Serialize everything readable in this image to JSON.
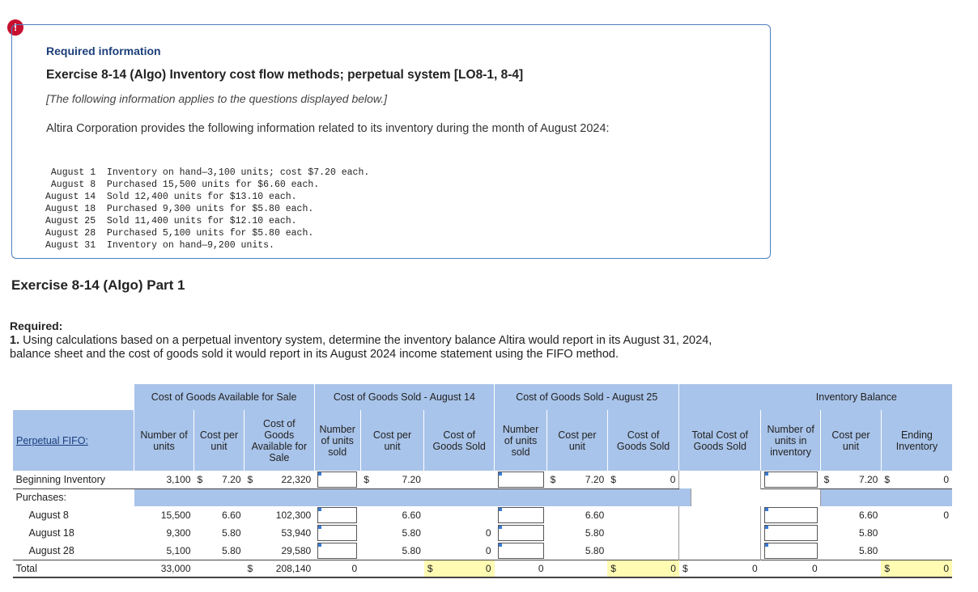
{
  "alert": "!",
  "info": {
    "required_info": "Required information",
    "exercise_title": "Exercise 8-14 (Algo) Inventory cost flow methods; perpetual system [LO8-1, 8-4]",
    "note": "[The following information applies to the questions displayed below.]",
    "intro": "Altira Corporation provides the following information related to its inventory during the month of August 2024:",
    "transactions": [
      " August 1  Inventory on hand—3,100 units; cost $7.20 each.",
      " August 8  Purchased 15,500 units for $6.60 each.",
      "August 14  Sold 12,400 units for $13.10 each.",
      "August 18  Purchased 9,300 units for $5.80 each.",
      "August 25  Sold 11,400 units for $12.10 each.",
      "August 28  Purchased 5,100 units for $5.80 each.",
      "August 31  Inventory on hand—9,200 units."
    ]
  },
  "part_title": "Exercise 8-14 (Algo) Part 1",
  "required": {
    "label": "Required:",
    "number": "1.",
    "text": " Using calculations based on a perpetual inventory system, determine the inventory balance Altira would report in its August 31, 2024, balance sheet and the cost of goods sold it would report in its August 2024 income statement using the FIFO method."
  },
  "table": {
    "group_headers": {
      "available": "Cost of Goods Available for Sale",
      "sold14": "Cost of Goods Sold - August 14",
      "sold25": "Cost of Goods Sold - August 25",
      "balance": "Inventory Balance"
    },
    "perpetual_label": "Perpetual FIFO:",
    "col": {
      "num_units": "Number of units",
      "cost_per_unit": "Cost per unit",
      "cost_available": "Cost of Goods Available for Sale",
      "num_units_sold": "Number of units sold",
      "cost_goods_sold": "Cost of Goods Sold",
      "total_cogs": "Total Cost of Goods Sold",
      "num_in_inventory": "Number of units in inventory",
      "ending_inventory": "Ending Inventory"
    },
    "dollar": "$",
    "rows": {
      "beginning": {
        "label": "Beginning Inventory",
        "units": "3,100",
        "cost": "7.20",
        "total": "22,320",
        "c14": "7.20",
        "c25": "7.20",
        "cogs25": "0",
        "bal_cost": "7.20",
        "bal_end": "0"
      },
      "purchases_label": "Purchases:",
      "aug8": {
        "label": "August 8",
        "units": "15,500",
        "cost": "6.60",
        "total": "102,300",
        "c14": "6.60",
        "c25": "6.60",
        "bal_cost": "6.60",
        "bal_end": "0"
      },
      "aug18": {
        "label": "August 18",
        "units": "9,300",
        "cost": "5.80",
        "total": "53,940",
        "c14": "5.80",
        "cogs14": "0",
        "c25": "5.80",
        "bal_cost": "5.80"
      },
      "aug28": {
        "label": "August 28",
        "units": "5,100",
        "cost": "5.80",
        "total": "29,580",
        "c14": "5.80",
        "cogs14": "0",
        "c25": "5.80",
        "bal_cost": "5.80"
      },
      "total": {
        "label": "Total",
        "units": "33,000",
        "total": "208,140",
        "sold14": "0",
        "cogs14": "0",
        "sold25": "0",
        "cogs25": "0",
        "total_cogs": "0",
        "inv_units": "0",
        "bal_end": "0"
      }
    }
  }
}
